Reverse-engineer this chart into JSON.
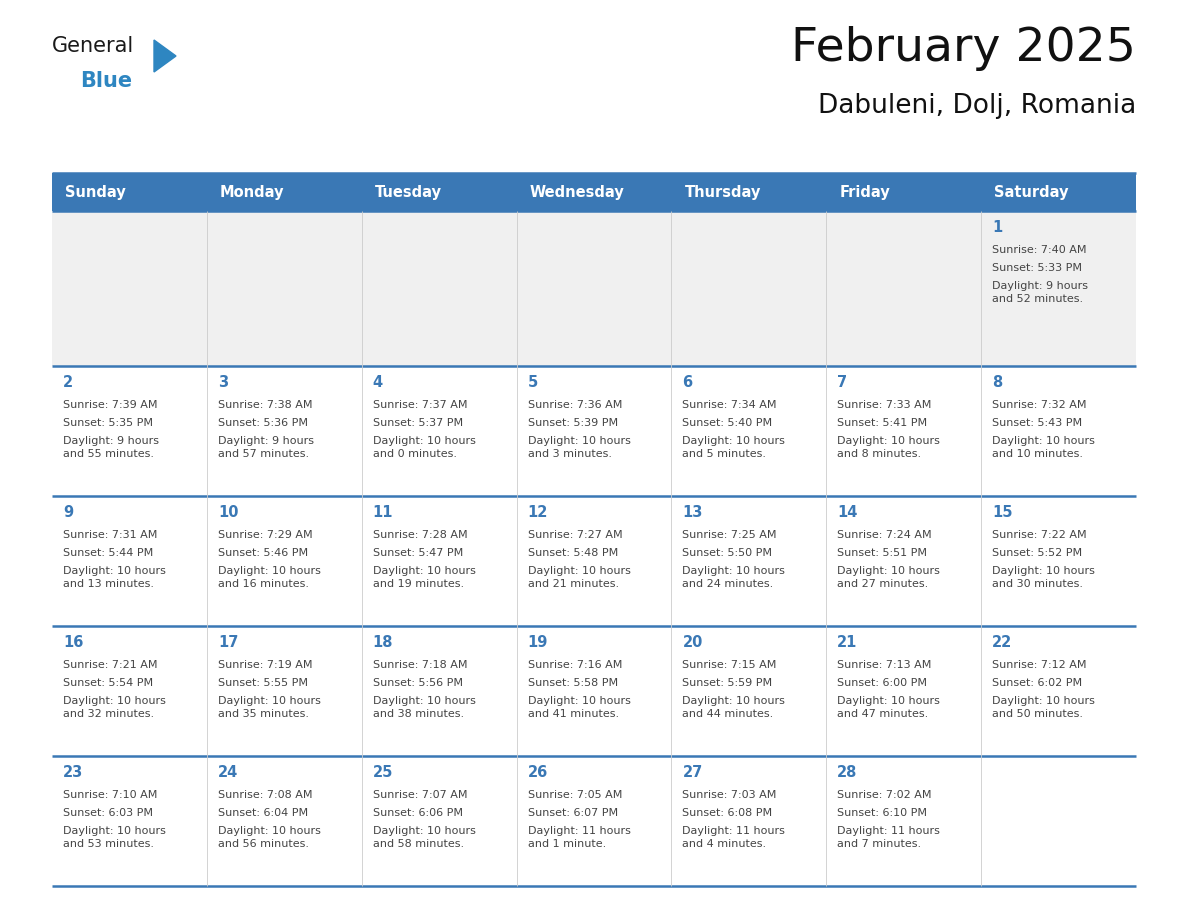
{
  "title": "February 2025",
  "subtitle": "Dabuleni, Dolj, Romania",
  "header_bg": "#3a78b5",
  "header_text": "#ffffff",
  "day_names": [
    "Sunday",
    "Monday",
    "Tuesday",
    "Wednesday",
    "Thursday",
    "Friday",
    "Saturday"
  ],
  "cell_bg": "#ffffff",
  "row0_bg": "#f0f0f0",
  "border_color": "#3a78b5",
  "inner_border_color": "#3a78b5",
  "text_color": "#444444",
  "day_num_color": "#3a78b5",
  "calendar": [
    [
      {
        "day": null,
        "sunrise": null,
        "sunset": null,
        "daylight": null
      },
      {
        "day": null,
        "sunrise": null,
        "sunset": null,
        "daylight": null
      },
      {
        "day": null,
        "sunrise": null,
        "sunset": null,
        "daylight": null
      },
      {
        "day": null,
        "sunrise": null,
        "sunset": null,
        "daylight": null
      },
      {
        "day": null,
        "sunrise": null,
        "sunset": null,
        "daylight": null
      },
      {
        "day": null,
        "sunrise": null,
        "sunset": null,
        "daylight": null
      },
      {
        "day": 1,
        "sunrise": "7:40 AM",
        "sunset": "5:33 PM",
        "daylight": "9 hours\nand 52 minutes."
      }
    ],
    [
      {
        "day": 2,
        "sunrise": "7:39 AM",
        "sunset": "5:35 PM",
        "daylight": "9 hours\nand 55 minutes."
      },
      {
        "day": 3,
        "sunrise": "7:38 AM",
        "sunset": "5:36 PM",
        "daylight": "9 hours\nand 57 minutes."
      },
      {
        "day": 4,
        "sunrise": "7:37 AM",
        "sunset": "5:37 PM",
        "daylight": "10 hours\nand 0 minutes."
      },
      {
        "day": 5,
        "sunrise": "7:36 AM",
        "sunset": "5:39 PM",
        "daylight": "10 hours\nand 3 minutes."
      },
      {
        "day": 6,
        "sunrise": "7:34 AM",
        "sunset": "5:40 PM",
        "daylight": "10 hours\nand 5 minutes."
      },
      {
        "day": 7,
        "sunrise": "7:33 AM",
        "sunset": "5:41 PM",
        "daylight": "10 hours\nand 8 minutes."
      },
      {
        "day": 8,
        "sunrise": "7:32 AM",
        "sunset": "5:43 PM",
        "daylight": "10 hours\nand 10 minutes."
      }
    ],
    [
      {
        "day": 9,
        "sunrise": "7:31 AM",
        "sunset": "5:44 PM",
        "daylight": "10 hours\nand 13 minutes."
      },
      {
        "day": 10,
        "sunrise": "7:29 AM",
        "sunset": "5:46 PM",
        "daylight": "10 hours\nand 16 minutes."
      },
      {
        "day": 11,
        "sunrise": "7:28 AM",
        "sunset": "5:47 PM",
        "daylight": "10 hours\nand 19 minutes."
      },
      {
        "day": 12,
        "sunrise": "7:27 AM",
        "sunset": "5:48 PM",
        "daylight": "10 hours\nand 21 minutes."
      },
      {
        "day": 13,
        "sunrise": "7:25 AM",
        "sunset": "5:50 PM",
        "daylight": "10 hours\nand 24 minutes."
      },
      {
        "day": 14,
        "sunrise": "7:24 AM",
        "sunset": "5:51 PM",
        "daylight": "10 hours\nand 27 minutes."
      },
      {
        "day": 15,
        "sunrise": "7:22 AM",
        "sunset": "5:52 PM",
        "daylight": "10 hours\nand 30 minutes."
      }
    ],
    [
      {
        "day": 16,
        "sunrise": "7:21 AM",
        "sunset": "5:54 PM",
        "daylight": "10 hours\nand 32 minutes."
      },
      {
        "day": 17,
        "sunrise": "7:19 AM",
        "sunset": "5:55 PM",
        "daylight": "10 hours\nand 35 minutes."
      },
      {
        "day": 18,
        "sunrise": "7:18 AM",
        "sunset": "5:56 PM",
        "daylight": "10 hours\nand 38 minutes."
      },
      {
        "day": 19,
        "sunrise": "7:16 AM",
        "sunset": "5:58 PM",
        "daylight": "10 hours\nand 41 minutes."
      },
      {
        "day": 20,
        "sunrise": "7:15 AM",
        "sunset": "5:59 PM",
        "daylight": "10 hours\nand 44 minutes."
      },
      {
        "day": 21,
        "sunrise": "7:13 AM",
        "sunset": "6:00 PM",
        "daylight": "10 hours\nand 47 minutes."
      },
      {
        "day": 22,
        "sunrise": "7:12 AM",
        "sunset": "6:02 PM",
        "daylight": "10 hours\nand 50 minutes."
      }
    ],
    [
      {
        "day": 23,
        "sunrise": "7:10 AM",
        "sunset": "6:03 PM",
        "daylight": "10 hours\nand 53 minutes."
      },
      {
        "day": 24,
        "sunrise": "7:08 AM",
        "sunset": "6:04 PM",
        "daylight": "10 hours\nand 56 minutes."
      },
      {
        "day": 25,
        "sunrise": "7:07 AM",
        "sunset": "6:06 PM",
        "daylight": "10 hours\nand 58 minutes."
      },
      {
        "day": 26,
        "sunrise": "7:05 AM",
        "sunset": "6:07 PM",
        "daylight": "11 hours\nand 1 minute."
      },
      {
        "day": 27,
        "sunrise": "7:03 AM",
        "sunset": "6:08 PM",
        "daylight": "11 hours\nand 4 minutes."
      },
      {
        "day": 28,
        "sunrise": "7:02 AM",
        "sunset": "6:10 PM",
        "daylight": "11 hours\nand 7 minutes."
      },
      {
        "day": null,
        "sunrise": null,
        "sunset": null,
        "daylight": null
      }
    ]
  ],
  "logo_general_color": "#1a1a1a",
  "logo_blue_color": "#2e86c1",
  "logo_triangle_color": "#2e86c1",
  "fig_width": 11.88,
  "fig_height": 9.18,
  "dpi": 100
}
